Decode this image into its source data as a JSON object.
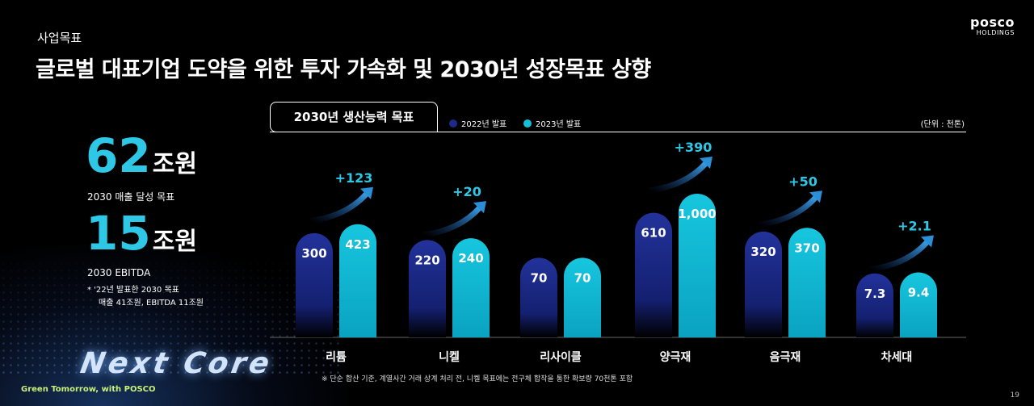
{
  "header": {
    "section_label": "사업목표",
    "title": "글로벌 대표기업 도약을 위한 투자 가속화 및 2030년 성장목표 상향"
  },
  "logo": {
    "main": "posco",
    "sub": "HOLDINGS"
  },
  "kpis": [
    {
      "value": "62",
      "unit": "조원",
      "desc": "2030 매출 달성 목표"
    },
    {
      "value": "15",
      "unit": "조원",
      "desc": "2030 EBITDA"
    }
  ],
  "footnote": {
    "line1": "* '22년 발표한 2030 목표",
    "line2": "매출 41조원, EBITDA 11조원"
  },
  "branding": {
    "next_core": "Next Core",
    "slogan": "Green Tomorrow, with POSCO"
  },
  "page_number": "19",
  "colors": {
    "series_2022": "#1c2a8a",
    "series_2023": "#15bfd9",
    "accent": "#2ec7e6",
    "arrow": "#2a8fd6"
  },
  "chart_data": {
    "type": "bar",
    "title": "2030년 생산능력 목표",
    "unit": "(단위 : 천톤)",
    "categories": [
      "리튬",
      "니켈",
      "리사이클",
      "양극재",
      "음극재",
      "차세대"
    ],
    "series": [
      {
        "name": "2022년 발표",
        "values": [
          300,
          220,
          70,
          610,
          320,
          7.3
        ],
        "labels": [
          "300",
          "220",
          "70",
          "610",
          "320",
          "7.3"
        ]
      },
      {
        "name": "2023년 발표",
        "values": [
          423,
          240,
          70,
          1000,
          370,
          9.4
        ],
        "labels": [
          "423",
          "240",
          "70",
          "1,000",
          "370",
          "9.4"
        ]
      }
    ],
    "increments": [
      "+123",
      "+20",
      "",
      "+390",
      "+50",
      "+2.1"
    ],
    "note": "※ 단순 합산 기준, 계열사간 거래 상계 처리 전, 니켈 목표에는 전구체 합작을 통한 확보량 70천톤 포함"
  }
}
